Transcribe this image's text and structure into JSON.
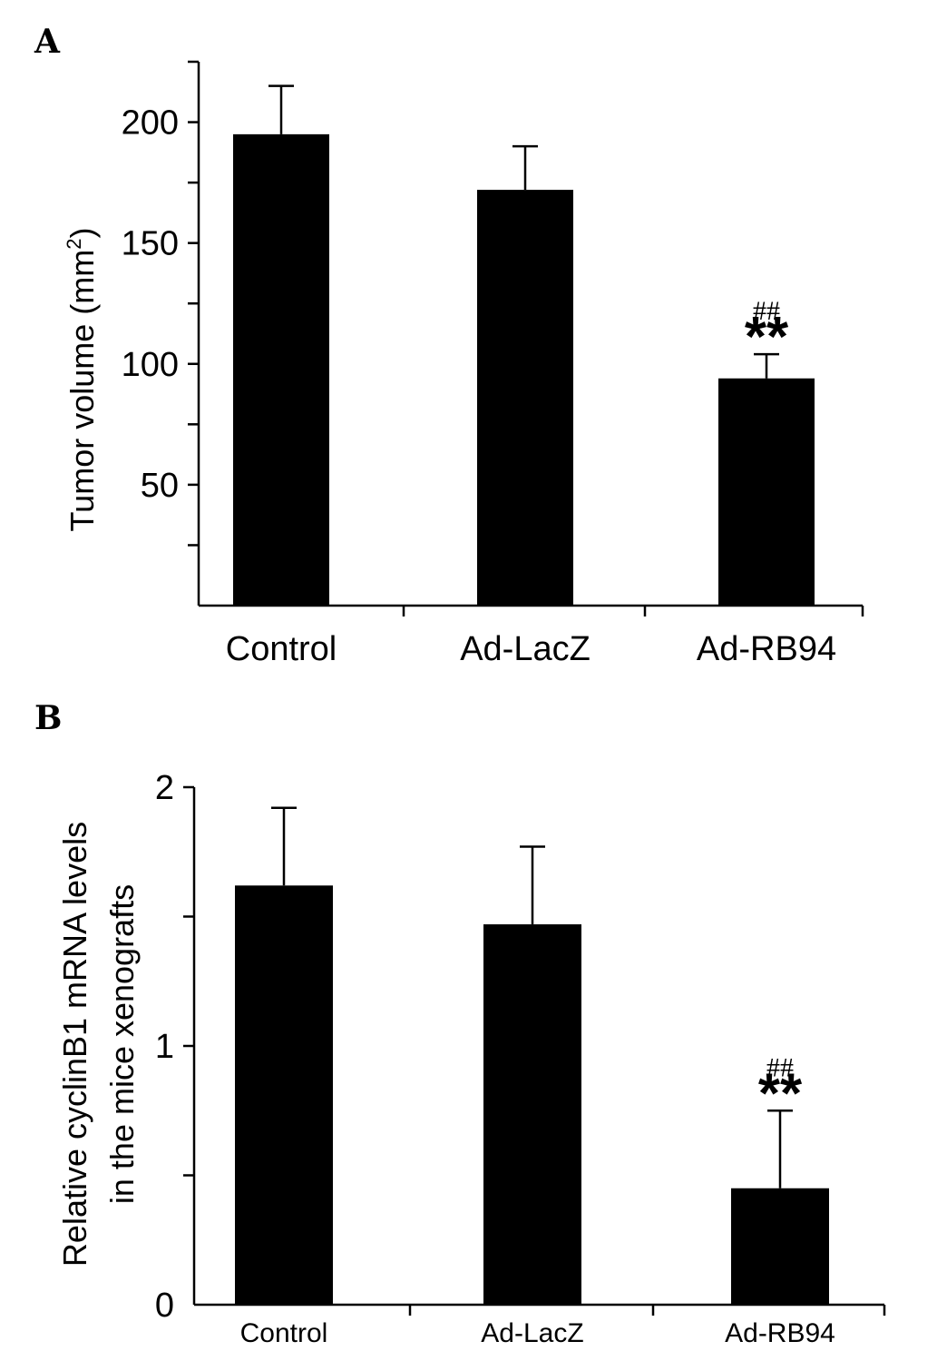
{
  "chart_data": [
    {
      "panel": "A",
      "type": "bar",
      "categories": [
        "Control",
        "Ad-LacZ",
        "Ad-RB94"
      ],
      "values": [
        195,
        172,
        94
      ],
      "errors": [
        20,
        18,
        10
      ],
      "ylabel": "Tumor volume (mm",
      "ylabel_sup": "2",
      "ylabel_end": ")",
      "ylim": [
        0,
        225
      ],
      "yticks": [
        50,
        100,
        150,
        200
      ],
      "ytick_labels": [
        "50",
        "100",
        "150",
        "200"
      ],
      "annotations": [
        {
          "category": "Ad-RB94",
          "stars": "**",
          "hashes": "##"
        }
      ],
      "legend": "none",
      "grid": false
    },
    {
      "panel": "B",
      "type": "bar",
      "categories": [
        "Control",
        "Ad-LacZ",
        "Ad-RB94"
      ],
      "values": [
        1.62,
        1.47,
        0.45
      ],
      "errors": [
        0.3,
        0.3,
        0.3
      ],
      "ylabel_line1": "Relative  cyclinB1 mRNA levels",
      "ylabel_line2": "in the mice  xenografts",
      "ylim": [
        0,
        2
      ],
      "yticks": [
        0,
        1,
        2
      ],
      "ytick_labels": [
        "0",
        "1",
        "2"
      ],
      "annotations": [
        {
          "category": "Ad-RB94",
          "stars": "**",
          "hashes": "##"
        }
      ],
      "legend": "none",
      "grid": false
    }
  ]
}
